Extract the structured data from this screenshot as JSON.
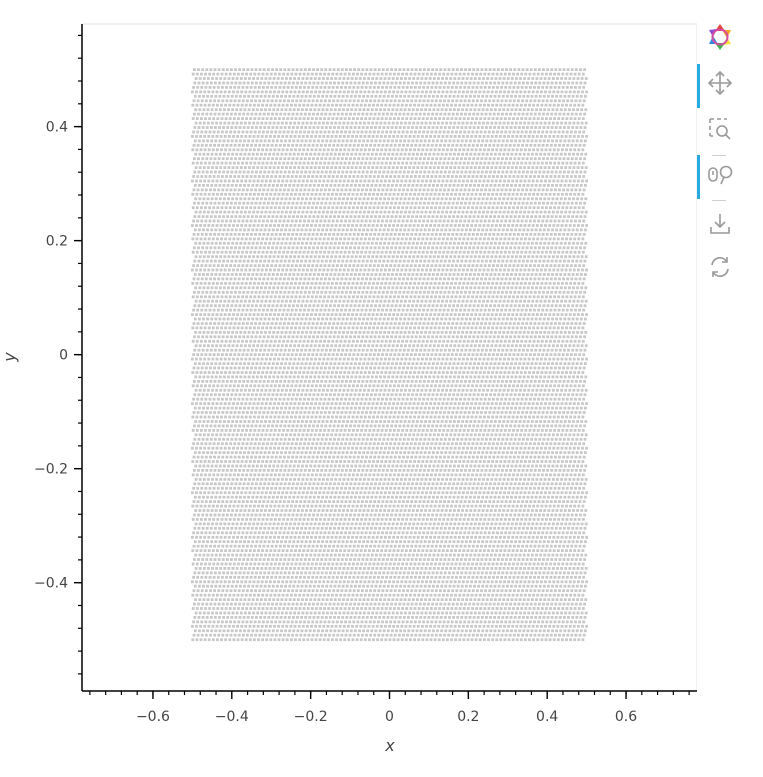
{
  "chart_data": {
    "type": "scatter",
    "xlabel": "x",
    "ylabel": "y",
    "xlim": [
      -0.78,
      0.78
    ],
    "ylim": [
      -0.59,
      0.58
    ],
    "x_ticks": [
      -0.6,
      -0.4,
      -0.2,
      0,
      0.2,
      0.4,
      0.6
    ],
    "x_tick_labels": [
      "−0.6",
      "−0.4",
      "−0.2",
      "0",
      "0.2",
      "0.4",
      "0.6"
    ],
    "y_ticks": [
      -0.4,
      -0.2,
      0,
      0.2,
      0.4
    ],
    "y_tick_labels": [
      "−0.4",
      "−0.2",
      "0",
      "0.2",
      "0.4"
    ],
    "marker_color": "#c8c8c8",
    "grid": false,
    "region": {
      "x": [
        -0.5,
        0.5
      ],
      "y": [
        -0.5,
        0.5
      ]
    },
    "pattern": "dense repeated glyph markers arranged in a slanted rectangular grid"
  },
  "toolbar": {
    "tools": [
      {
        "name": "bokeh-logo-icon",
        "active": false
      },
      {
        "name": "pan-icon",
        "active": true
      },
      {
        "name": "box-zoom-icon",
        "active": false
      },
      {
        "name": "wheel-zoom-icon",
        "active": true
      },
      {
        "name": "save-icon",
        "active": false
      },
      {
        "name": "reset-icon",
        "active": false
      }
    ]
  }
}
